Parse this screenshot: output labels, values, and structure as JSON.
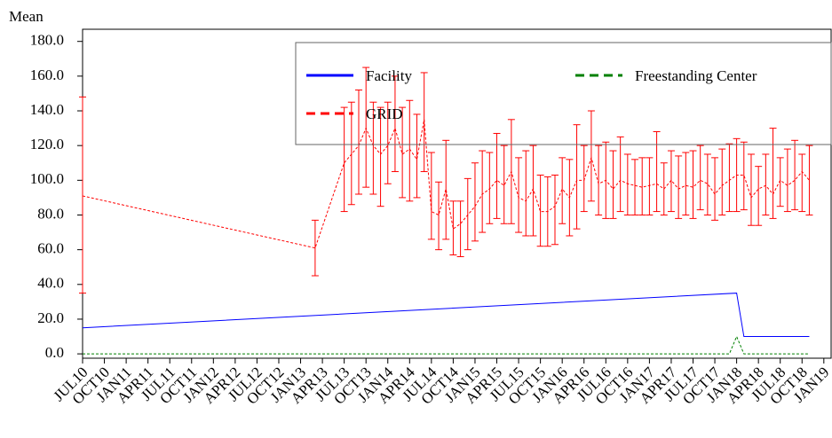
{
  "chart_data": {
    "type": "line",
    "y_label": "Mean",
    "xlim": [
      0,
      103
    ],
    "ylim": [
      -2.5,
      187
    ],
    "xticks": [
      {
        "value": 0,
        "label": "JUL10"
      },
      {
        "value": 3,
        "label": "OCT10"
      },
      {
        "value": 6,
        "label": "JAN11"
      },
      {
        "value": 9,
        "label": "APR11"
      },
      {
        "value": 12,
        "label": "JUL11"
      },
      {
        "value": 15,
        "label": "OCT11"
      },
      {
        "value": 18,
        "label": "JAN12"
      },
      {
        "value": 21,
        "label": "APR12"
      },
      {
        "value": 24,
        "label": "JUL12"
      },
      {
        "value": 27,
        "label": "OCT12"
      },
      {
        "value": 30,
        "label": "JAN13"
      },
      {
        "value": 33,
        "label": "APR13"
      },
      {
        "value": 36,
        "label": "JUL13"
      },
      {
        "value": 39,
        "label": "OCT13"
      },
      {
        "value": 42,
        "label": "JAN14"
      },
      {
        "value": 45,
        "label": "APR14"
      },
      {
        "value": 48,
        "label": "JUL14"
      },
      {
        "value": 51,
        "label": "OCT14"
      },
      {
        "value": 54,
        "label": "JAN15"
      },
      {
        "value": 57,
        "label": "APR15"
      },
      {
        "value": 60,
        "label": "JUL15"
      },
      {
        "value": 63,
        "label": "OCT15"
      },
      {
        "value": 66,
        "label": "JAN16"
      },
      {
        "value": 69,
        "label": "APR16"
      },
      {
        "value": 72,
        "label": "JUL16"
      },
      {
        "value": 75,
        "label": "OCT16"
      },
      {
        "value": 78,
        "label": "JAN17"
      },
      {
        "value": 81,
        "label": "APR17"
      },
      {
        "value": 84,
        "label": "JUL17"
      },
      {
        "value": 87,
        "label": "OCT17"
      },
      {
        "value": 90,
        "label": "JAN18"
      },
      {
        "value": 93,
        "label": "APR18"
      },
      {
        "value": 96,
        "label": "JUL18"
      },
      {
        "value": 99,
        "label": "OCT18"
      },
      {
        "value": 102,
        "label": "JAN19"
      }
    ],
    "yticks": [
      {
        "value": 0,
        "label": "0.0"
      },
      {
        "value": 20,
        "label": "20.0"
      },
      {
        "value": 40,
        "label": "40.0"
      },
      {
        "value": 60,
        "label": "60.0"
      },
      {
        "value": 80,
        "label": "80.0"
      },
      {
        "value": 100,
        "label": "100.0"
      },
      {
        "value": 120,
        "label": "120.0"
      },
      {
        "value": 140,
        "label": "140.0"
      },
      {
        "value": 160,
        "label": "160.0"
      },
      {
        "value": 180,
        "label": "180.0"
      }
    ],
    "legend": "top-right",
    "series": [
      {
        "name": "Facility",
        "color": "#0000ff",
        "line_style": "solid",
        "x": [
          0,
          90,
          91,
          100
        ],
        "values": [
          15,
          35,
          10,
          10
        ]
      },
      {
        "name": "Freestanding Center",
        "color": "#008000",
        "line_style": "dashed",
        "x": [
          0,
          89,
          90,
          91,
          100
        ],
        "values": [
          0,
          0,
          10,
          0,
          0
        ]
      },
      {
        "name": "GRID",
        "color": "#ff0000",
        "line_style": "dashed",
        "x": [
          0,
          32,
          36,
          37,
          38,
          39,
          40,
          41,
          42,
          43,
          44,
          45,
          46,
          47,
          48,
          49,
          50,
          51,
          52,
          53,
          54,
          55,
          56,
          57,
          58,
          59,
          60,
          61,
          62,
          63,
          64,
          65,
          66,
          67,
          68,
          69,
          70,
          71,
          72,
          73,
          74,
          75,
          76,
          77,
          78,
          79,
          80,
          81,
          82,
          83,
          84,
          85,
          86,
          87,
          88,
          89,
          90,
          91,
          92,
          93,
          94,
          95,
          96,
          97,
          98,
          99,
          100
        ],
        "values": [
          91,
          61,
          110,
          115,
          120,
          130,
          120,
          115,
          120,
          130,
          115,
          118,
          112,
          135,
          82,
          80,
          95,
          72,
          75,
          80,
          85,
          92,
          95,
          100,
          97,
          105,
          90,
          88,
          95,
          82,
          82,
          85,
          95,
          90,
          100,
          100,
          113,
          98,
          100,
          95,
          100,
          98,
          97,
          96,
          97,
          98,
          95,
          100,
          95,
          97,
          96,
          100,
          98,
          92,
          97,
          100,
          103,
          103,
          90,
          95,
          97,
          92,
          100,
          97,
          100,
          105,
          100
        ],
        "lower": [
          35,
          45,
          82,
          86,
          92,
          96,
          92,
          85,
          98,
          105,
          90,
          88,
          90,
          105,
          66,
          60,
          66,
          57,
          56,
          60,
          65,
          70,
          75,
          78,
          75,
          75,
          70,
          68,
          68,
          62,
          62,
          63,
          75,
          68,
          72,
          82,
          88,
          80,
          78,
          78,
          82,
          80,
          80,
          80,
          80,
          82,
          80,
          82,
          78,
          80,
          78,
          83,
          80,
          77,
          80,
          82,
          82,
          83,
          74,
          74,
          80,
          78,
          85,
          82,
          83,
          82,
          80
        ],
        "upper": [
          148,
          77,
          142,
          145,
          152,
          165,
          145,
          142,
          145,
          160,
          142,
          146,
          138,
          162,
          116,
          99,
          123,
          88,
          88,
          101,
          110,
          117,
          116,
          127,
          120,
          135,
          113,
          117,
          120,
          103,
          102,
          103,
          113,
          112,
          132,
          120,
          140,
          120,
          122,
          117,
          125,
          115,
          112,
          113,
          113,
          128,
          110,
          117,
          114,
          116,
          117,
          120,
          115,
          113,
          118,
          121,
          124,
          122,
          115,
          108,
          115,
          130,
          113,
          118,
          123,
          115,
          120
        ]
      }
    ]
  }
}
